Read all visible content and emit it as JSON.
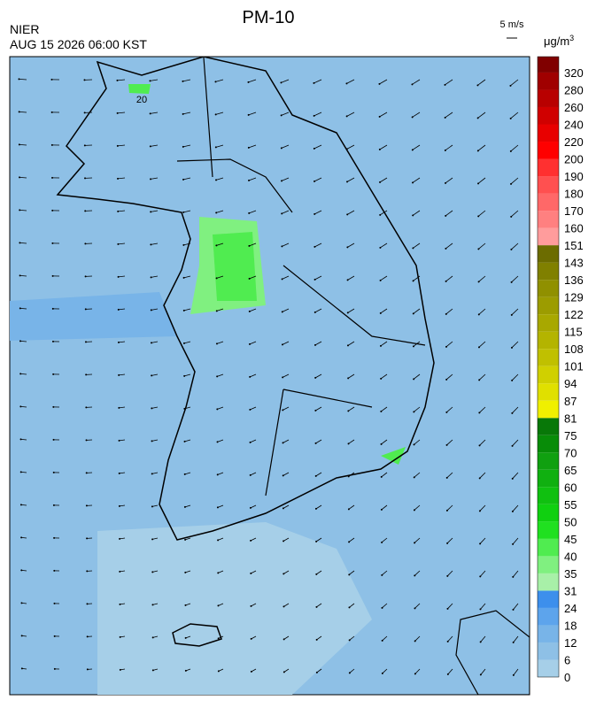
{
  "header": {
    "title": "PM-10",
    "source": "NIER",
    "timestamp": "AUG 15 2026 06:00 KST",
    "wind_scale": "5 m/s",
    "unit": "μg/m",
    "unit_sup": "3"
  },
  "map": {
    "contour_label": "20"
  },
  "legend": {
    "labels": [
      0,
      6,
      12,
      18,
      24,
      31,
      35,
      40,
      45,
      50,
      55,
      60,
      65,
      70,
      75,
      81,
      87,
      94,
      101,
      108,
      115,
      122,
      129,
      136,
      143,
      151,
      160,
      170,
      180,
      190,
      200,
      220,
      240,
      260,
      280,
      320
    ],
    "colors": [
      "#a6cfe8",
      "#8ec0e6",
      "#78b4e8",
      "#5da4ec",
      "#3d8fec",
      "#a8f0a8",
      "#80f080",
      "#50ec50",
      "#20e020",
      "#10d010",
      "#10c010",
      "#10b010",
      "#10a010",
      "#088c08",
      "#087808",
      "#f0f000",
      "#e0e000",
      "#d0d000",
      "#c0c000",
      "#b4b400",
      "#a8a800",
      "#9c9c00",
      "#909000",
      "#808000",
      "#6c6c00",
      "#ff9c9c",
      "#ff8080",
      "#ff6868",
      "#ff5050",
      "#ff3030",
      "#ff0000",
      "#e80000",
      "#d00000",
      "#b80000",
      "#a00000",
      "#800000"
    ]
  }
}
